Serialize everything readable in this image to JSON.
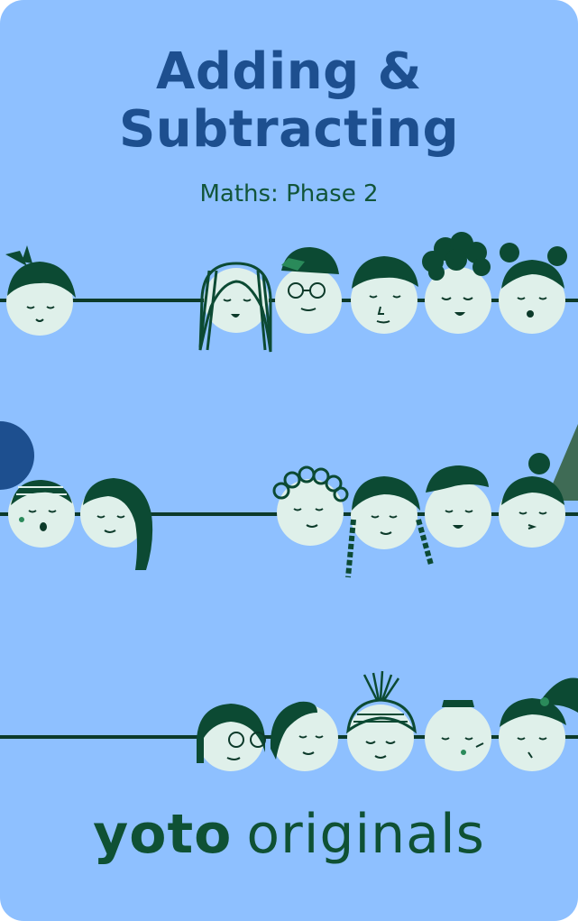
{
  "title": {
    "line1": "Adding &",
    "line2": "Subtracting"
  },
  "subtitle": "Maths: Phase 2",
  "brand": {
    "part1": "yoto",
    "part2": "originals"
  },
  "colors": {
    "background": "#8ec0ff",
    "title": "#1d4f8f",
    "brand_green": "#0f5134",
    "face": "#dff0ea",
    "hair": "#0c4a33",
    "wire": "#0c3a2a"
  },
  "illustration": {
    "rows": [
      {
        "faces": [
          "girl-bun-face",
          "long-hair-face",
          "glasses-cap-face",
          "spiky-hair-face",
          "curly-hair-face",
          "pigtails-face"
        ]
      },
      {
        "faces": [
          "beanie-face",
          "wavy-hair-face",
          "curly-top-face",
          "braids-face",
          "beret-face",
          "topknot-face"
        ]
      },
      {
        "faces": [
          "bob-glasses-face",
          "side-part-face",
          "sprout-hair-face",
          "short-hair-face",
          "ponytail-face"
        ]
      }
    ]
  }
}
